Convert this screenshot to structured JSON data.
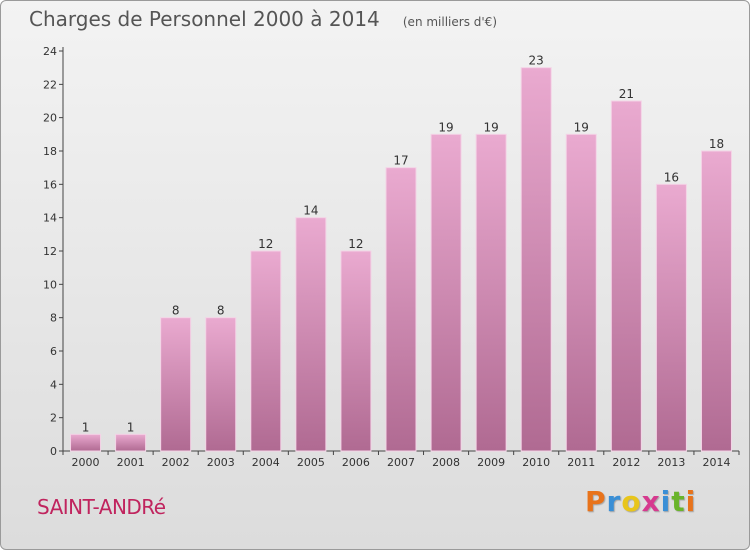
{
  "title": "Charges de Personnel 2000 à 2014",
  "subtitle": "(en milliers d'€)",
  "commune": "SAINT-ANDRé",
  "logo": {
    "letters": [
      "P",
      "r",
      "o",
      "x",
      "i",
      "t",
      "i"
    ],
    "colors": [
      "#e8731b",
      "#3a8fd6",
      "#e8c51b",
      "#d63a8f",
      "#3a8fd6",
      "#6ab42b",
      "#e8731b"
    ]
  },
  "colors": {
    "bar_top": "#eaaad0",
    "bar_bottom": "#b06a92",
    "commune": "#c0245e"
  },
  "chart_data": {
    "type": "bar",
    "categories": [
      "2000",
      "2001",
      "2002",
      "2003",
      "2004",
      "2005",
      "2006",
      "2007",
      "2008",
      "2009",
      "2010",
      "2011",
      "2012",
      "2013",
      "2014"
    ],
    "values": [
      1,
      1,
      8,
      8,
      12,
      14,
      12,
      17,
      19,
      19,
      23,
      19,
      21,
      16,
      18
    ],
    "ylim": [
      0,
      24
    ],
    "yticks": [
      0,
      2,
      4,
      6,
      8,
      10,
      12,
      14,
      16,
      18,
      20,
      22,
      24
    ],
    "grid": false,
    "data_labels": true
  }
}
